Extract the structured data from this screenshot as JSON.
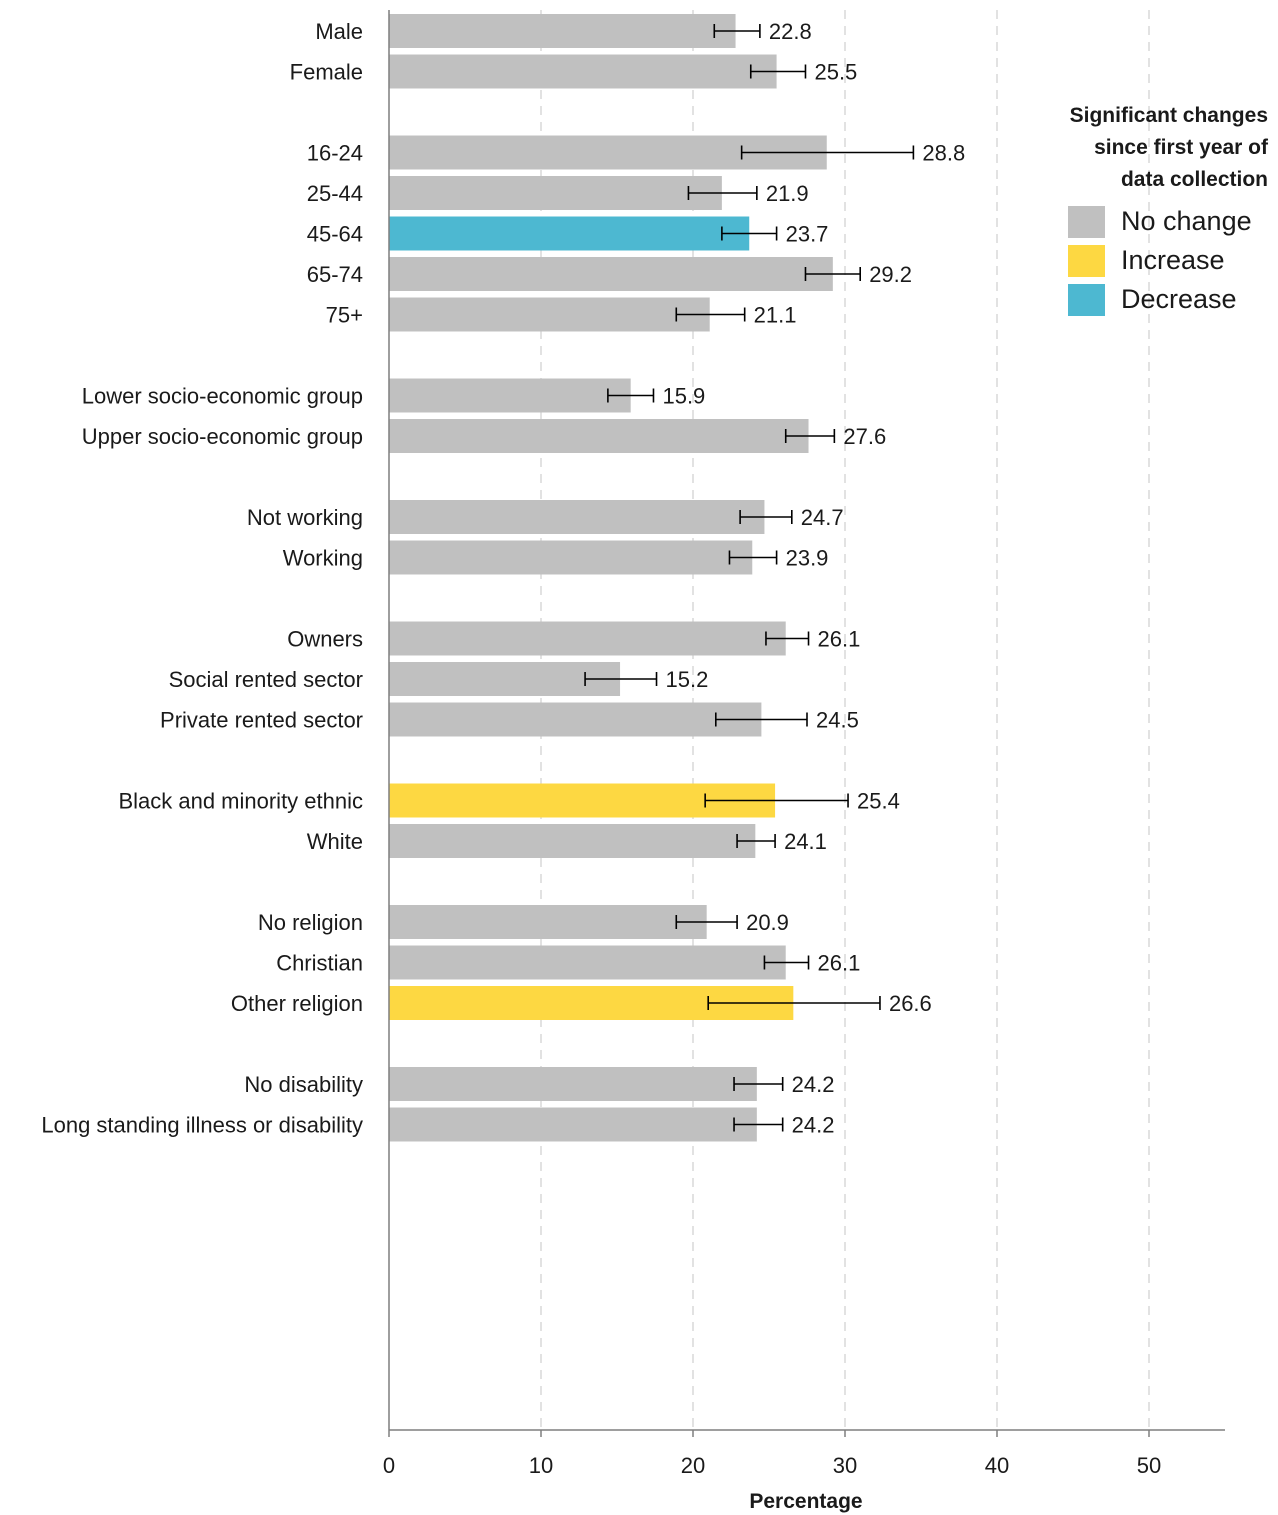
{
  "chart_data": {
    "type": "bar",
    "orientation": "horizontal",
    "title": "",
    "xlabel": "Percentage",
    "ylabel": "",
    "xlim": [
      0,
      55
    ],
    "xticks": [
      0,
      10,
      20,
      30,
      40,
      50
    ],
    "grid": "vertical dashed",
    "legend_position": "top-right",
    "groups": [
      {
        "items": [
          {
            "label": "Male",
            "value": 22.8,
            "value_label": "22.8",
            "ci": [
              21.4,
              24.4
            ],
            "status": "no_change"
          },
          {
            "label": "Female",
            "value": 25.5,
            "value_label": "25.5",
            "ci": [
              23.8,
              27.4
            ],
            "status": "no_change"
          }
        ]
      },
      {
        "items": [
          {
            "label": "16-24",
            "value": 28.8,
            "value_label": "28.8",
            "ci": [
              23.2,
              34.5
            ],
            "status": "no_change"
          },
          {
            "label": "25-44",
            "value": 21.9,
            "value_label": "21.9",
            "ci": [
              19.7,
              24.2
            ],
            "status": "no_change"
          },
          {
            "label": "45-64",
            "value": 23.7,
            "value_label": "23.7",
            "ci": [
              21.9,
              25.5
            ],
            "status": "decrease"
          },
          {
            "label": "65-74",
            "value": 29.2,
            "value_label": "29.2",
            "ci": [
              27.4,
              31.0
            ],
            "status": "no_change"
          },
          {
            "label": "75+",
            "value": 21.1,
            "value_label": "21.1",
            "ci": [
              18.9,
              23.4
            ],
            "status": "no_change"
          }
        ]
      },
      {
        "items": [
          {
            "label": "Lower socio-economic group",
            "value": 15.9,
            "value_label": "15.9",
            "ci": [
              14.4,
              17.4
            ],
            "status": "no_change"
          },
          {
            "label": "Upper socio-economic group",
            "value": 27.6,
            "value_label": "27.6",
            "ci": [
              26.1,
              29.3
            ],
            "status": "no_change"
          }
        ]
      },
      {
        "items": [
          {
            "label": "Not working",
            "value": 24.7,
            "value_label": "24.7",
            "ci": [
              23.1,
              26.5
            ],
            "status": "no_change"
          },
          {
            "label": "Working",
            "value": 23.9,
            "value_label": "23.9",
            "ci": [
              22.4,
              25.5
            ],
            "status": "no_change"
          }
        ]
      },
      {
        "items": [
          {
            "label": "Owners",
            "value": 26.1,
            "value_label": "26.1",
            "ci": [
              24.8,
              27.6
            ],
            "status": "no_change"
          },
          {
            "label": "Social rented sector",
            "value": 15.2,
            "value_label": "15.2",
            "ci": [
              12.9,
              17.6
            ],
            "status": "no_change"
          },
          {
            "label": "Private rented sector",
            "value": 24.5,
            "value_label": "24.5",
            "ci": [
              21.5,
              27.5
            ],
            "status": "no_change"
          }
        ]
      },
      {
        "items": [
          {
            "label": "Black and minority ethnic",
            "value": 25.4,
            "value_label": "25.4",
            "ci": [
              20.8,
              30.2
            ],
            "status": "increase"
          },
          {
            "label": "White",
            "value": 24.1,
            "value_label": "24.1",
            "ci": [
              22.9,
              25.4
            ],
            "status": "no_change"
          }
        ]
      },
      {
        "items": [
          {
            "label": "No religion",
            "value": 20.9,
            "value_label": "20.9",
            "ci": [
              18.9,
              22.9
            ],
            "status": "no_change"
          },
          {
            "label": "Christian",
            "value": 26.1,
            "value_label": "26.1",
            "ci": [
              24.7,
              27.6
            ],
            "status": "no_change"
          },
          {
            "label": "Other religion",
            "value": 26.6,
            "value_label": "26.6",
            "ci": [
              21.0,
              32.3
            ],
            "status": "increase"
          }
        ]
      },
      {
        "items": [
          {
            "label": "No disability",
            "value": 24.2,
            "value_label": "24.2",
            "ci": [
              22.7,
              25.9
            ],
            "status": "no_change"
          },
          {
            "label": "Long standing illness or disability",
            "value": 24.2,
            "value_label": "24.2",
            "ci": [
              22.7,
              25.9
            ],
            "status": "no_change"
          }
        ]
      }
    ]
  },
  "legend": {
    "title_lines": [
      "Significant changes",
      "since first year of",
      "data collection"
    ],
    "items": [
      {
        "key": "no_change",
        "label": "No change",
        "color": "#c0c0c0"
      },
      {
        "key": "increase",
        "label": "Increase",
        "color": "#fdd842"
      },
      {
        "key": "decrease",
        "label": "Decrease",
        "color": "#4db8d1"
      }
    ]
  },
  "colors": {
    "no_change": "#c0c0c0",
    "increase": "#fdd842",
    "decrease": "#4db8d1",
    "axis": "#7f7f7f",
    "gridline": "#d9d9d9",
    "errorbar": "#000000"
  }
}
